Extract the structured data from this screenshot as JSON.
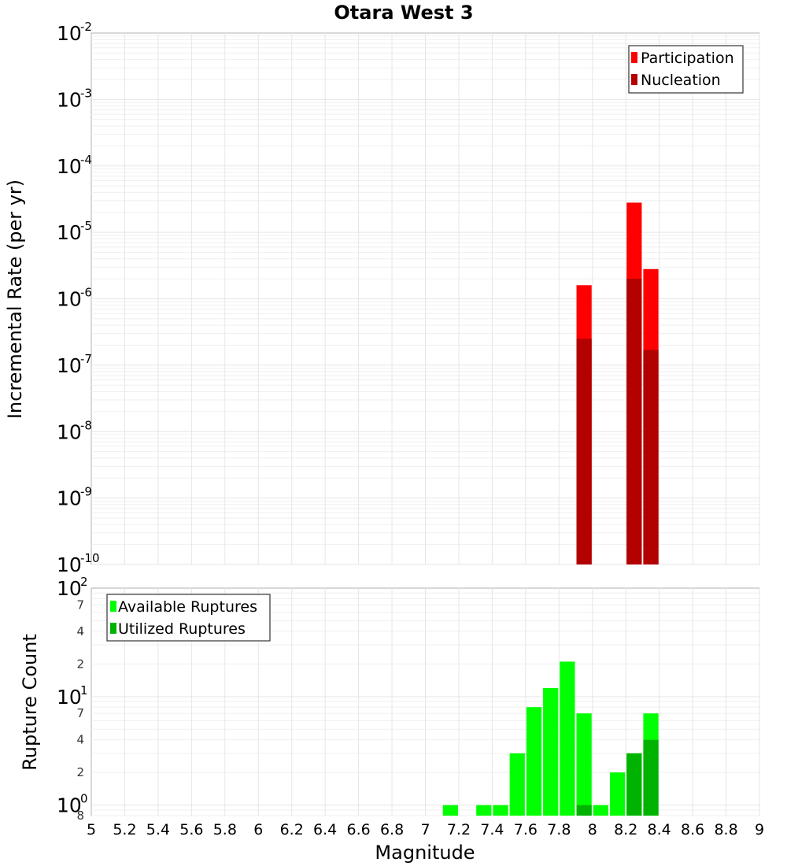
{
  "chart_data": [
    {
      "id": "top",
      "type": "bar",
      "title": "Otara West 3",
      "xlabel": "Magnitude",
      "ylabel": "Incremental Rate (per yr)",
      "xlim": [
        5,
        9
      ],
      "ylim_exp": [
        -10,
        -2
      ],
      "yscale": "log",
      "bin_width": 0.1,
      "xticks": [
        "5",
        "5.2",
        "5.4",
        "5.6",
        "5.8",
        "6",
        "6.2",
        "6.4",
        "6.6",
        "6.8",
        "7",
        "7.2",
        "7.4",
        "7.6",
        "7.8",
        "8",
        "8.2",
        "8.4",
        "8.6",
        "8.8",
        "9"
      ],
      "yticks": [
        {
          "base": "10",
          "exp": "-10",
          "value": -10
        },
        {
          "base": "10",
          "exp": "-9",
          "value": -9
        },
        {
          "base": "10",
          "exp": "-8",
          "value": -8
        },
        {
          "base": "10",
          "exp": "-7",
          "value": -7
        },
        {
          "base": "10",
          "exp": "-6",
          "value": -6
        },
        {
          "base": "10",
          "exp": "-5",
          "value": -5
        },
        {
          "base": "10",
          "exp": "-4",
          "value": -4
        },
        {
          "base": "10",
          "exp": "-3",
          "value": -3
        },
        {
          "base": "10",
          "exp": "-2",
          "value": -2
        }
      ],
      "series": [
        {
          "name": "Participation",
          "color": "#ff0000",
          "x": [
            7.95,
            8.25,
            8.35
          ],
          "values": [
            1.6e-06,
            2.8e-05,
            2.8e-06
          ]
        },
        {
          "name": "Nucleation",
          "color": "#b30000",
          "x": [
            7.95,
            8.25,
            8.35
          ],
          "values": [
            2.5e-07,
            2e-06,
            1.7e-07
          ]
        }
      ],
      "legend": "top-right"
    },
    {
      "id": "bottom",
      "type": "bar",
      "xlabel": "Magnitude",
      "ylabel": "Rupture Count",
      "xlim": [
        5,
        9
      ],
      "ylim": [
        0.8,
        100
      ],
      "yscale": "log",
      "bin_width": 0.1,
      "yticks": [
        {
          "base": "10",
          "exp": "2",
          "value": 100
        },
        {
          "base": "10",
          "exp": "1",
          "value": 10
        },
        {
          "base": "10",
          "exp": "0",
          "value": 1
        }
      ],
      "minor_yticks": [
        {
          "label": "7",
          "value": 70
        },
        {
          "label": "4",
          "value": 40
        },
        {
          "label": "2",
          "value": 20
        },
        {
          "label": "7",
          "value": 7
        },
        {
          "label": "4",
          "value": 4
        },
        {
          "label": "2",
          "value": 2
        },
        {
          "label": "8",
          "value": 0.8
        }
      ],
      "series": [
        {
          "name": "Available Ruptures",
          "color": "#00ff00",
          "x": [
            7.15,
            7.35,
            7.45,
            7.55,
            7.65,
            7.75,
            7.85,
            7.95,
            8.05,
            8.15,
            8.25,
            8.35
          ],
          "values": [
            1,
            1,
            1,
            3,
            8,
            12,
            21,
            7,
            1,
            2,
            3,
            7
          ]
        },
        {
          "name": "Utilized Ruptures",
          "color": "#00b300",
          "x": [
            7.95,
            8.25,
            8.35
          ],
          "values": [
            1,
            3,
            4
          ]
        }
      ],
      "legend": "top-left"
    }
  ]
}
